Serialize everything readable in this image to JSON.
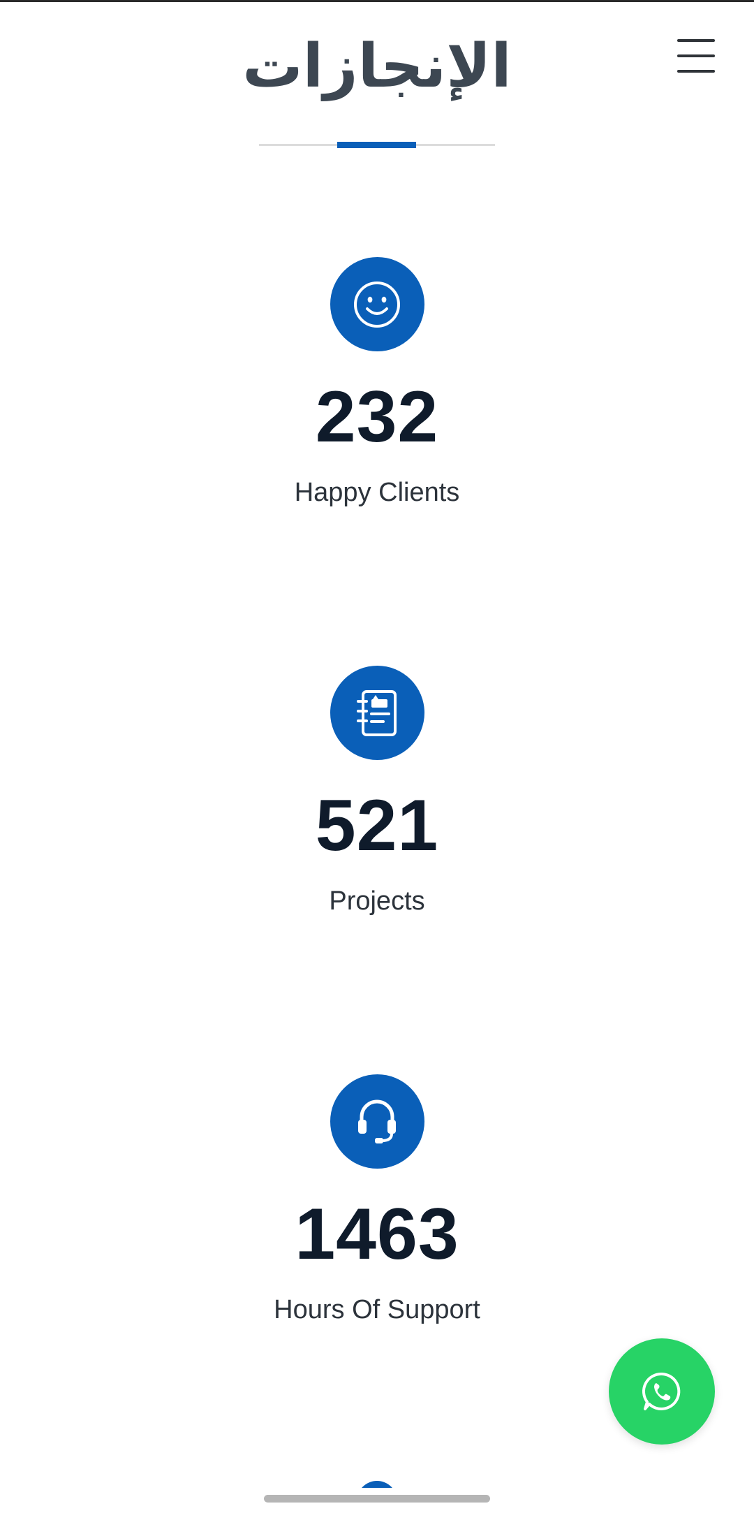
{
  "header": {
    "title": "الإنجازات",
    "menu_icon": "hamburger-menu-icon"
  },
  "stats": [
    {
      "icon": "smiley-face-icon",
      "number": "232",
      "label": "Happy Clients"
    },
    {
      "icon": "project-notebook-icon",
      "number": "521",
      "label": "Projects"
    },
    {
      "icon": "headset-icon",
      "number": "1463",
      "label": "Hours Of Support"
    }
  ],
  "floating": {
    "icon": "whatsapp-icon"
  },
  "colors": {
    "accent": "#0a5fb8",
    "whatsapp": "#27d366",
    "title": "#3d4752",
    "number": "#0f1b2b"
  }
}
